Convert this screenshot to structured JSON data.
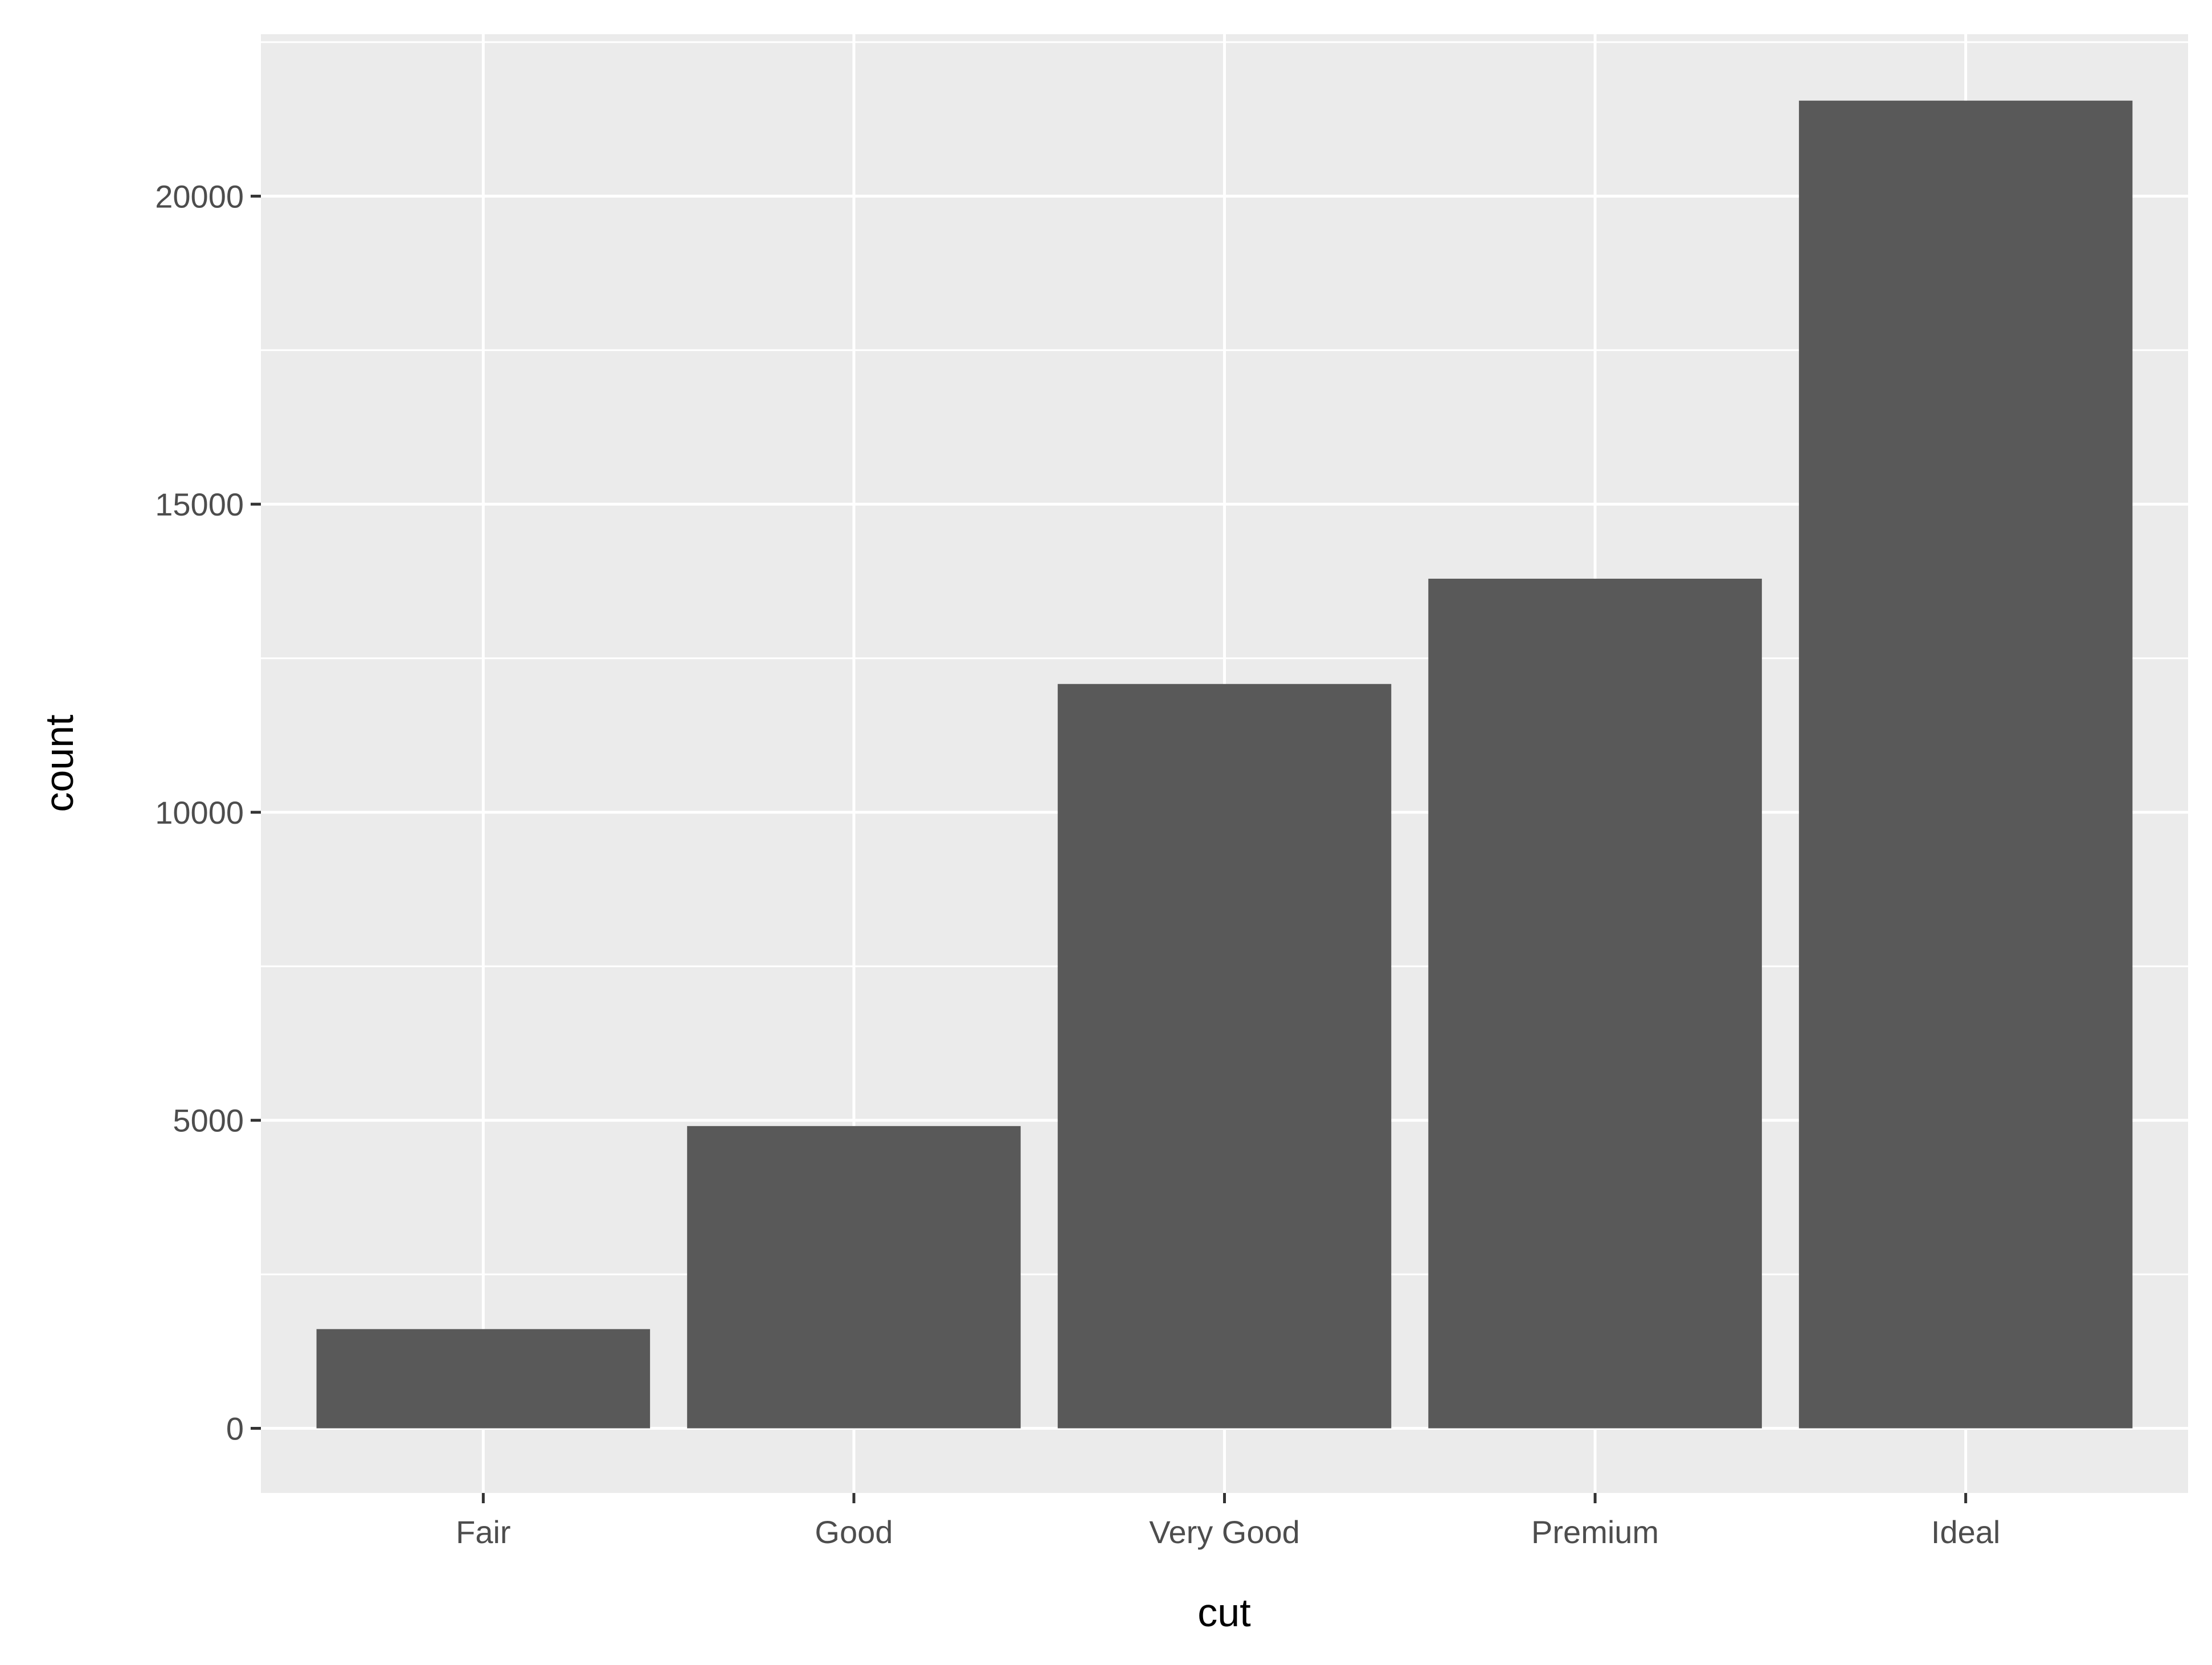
{
  "chart_data": {
    "type": "bar",
    "title": "",
    "xlabel": "cut",
    "ylabel": "count",
    "categories": [
      "Fair",
      "Good",
      "Very Good",
      "Premium",
      "Ideal"
    ],
    "values": [
      1610,
      4906,
      12082,
      13791,
      21551
    ],
    "ylim": [
      -1050,
      22630
    ],
    "yticks": [
      0,
      5000,
      10000,
      15000,
      20000
    ],
    "ytick_labels": [
      "0",
      "5000",
      "10000",
      "15000",
      "20000"
    ],
    "grid": true,
    "legend": "none",
    "colors": {
      "bar": "#595959",
      "panel": "#ebebeb",
      "grid": "#ffffff",
      "text": "#4d4d4d",
      "title": "#000000"
    }
  }
}
